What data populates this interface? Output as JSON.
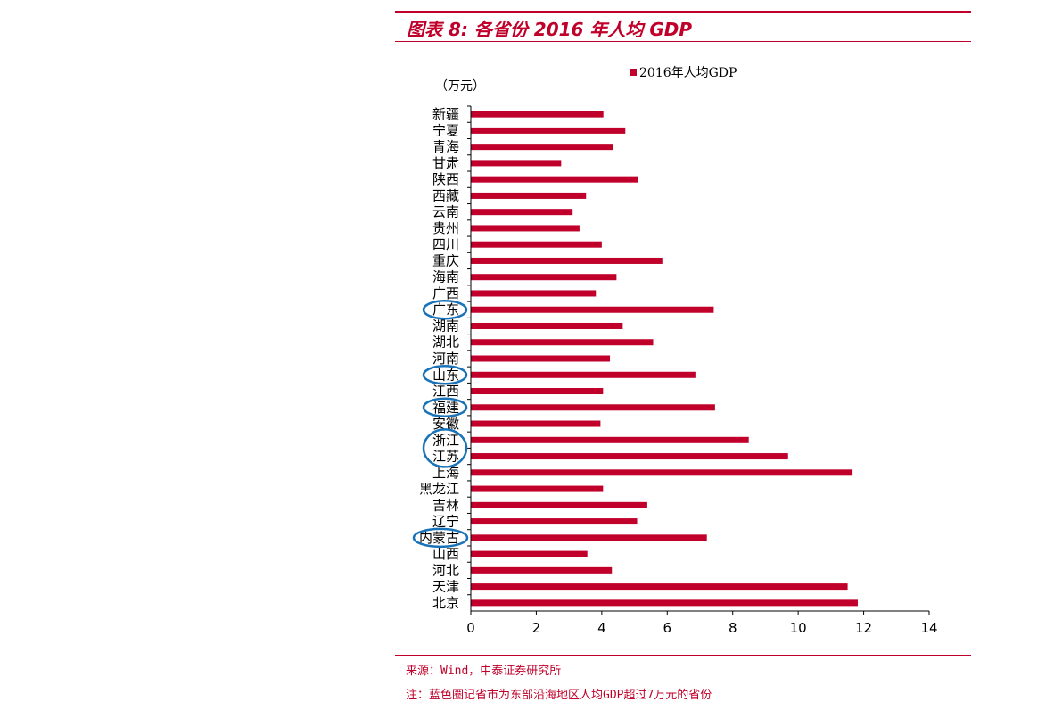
{
  "header": {
    "title": "图表 8: 各省份 2016 年人均 GDP",
    "accent_color": "#c0002a"
  },
  "footer": {
    "source": "来源：Wind，中泰证券研究所",
    "note": "注：蓝色圈记省市为东部沿海地区人均GDP超过7万元的省份"
  },
  "chart_data": {
    "type": "bar",
    "orientation": "horizontal",
    "unit_label": "（万元）",
    "categories": [
      "新疆",
      "宁夏",
      "青海",
      "甘肃",
      "陕西",
      "西藏",
      "云南",
      "贵州",
      "四川",
      "重庆",
      "海南",
      "广西",
      "广东",
      "湖南",
      "湖北",
      "河南",
      "山东",
      "江西",
      "福建",
      "安徽",
      "浙江",
      "江苏",
      "上海",
      "黑龙江",
      "吉林",
      "辽宁",
      "内蒙古",
      "山西",
      "河北",
      "天津",
      "北京"
    ],
    "series": [
      {
        "name": "2016年人均GDP",
        "color": "#c0002a",
        "values": [
          4.05,
          4.72,
          4.35,
          2.76,
          5.1,
          3.52,
          3.11,
          3.32,
          4.0,
          5.85,
          4.45,
          3.82,
          7.42,
          4.64,
          5.57,
          4.25,
          6.86,
          4.04,
          7.46,
          3.96,
          8.49,
          9.69,
          11.66,
          4.04,
          5.39,
          5.08,
          7.21,
          3.56,
          4.31,
          11.51,
          11.82
        ]
      }
    ],
    "xlim": [
      0,
      14
    ],
    "xticks": [
      "0",
      "2",
      "4",
      "6",
      "8",
      "10",
      "12",
      "14"
    ],
    "highlighted_categories": [
      "广东",
      "山东",
      "福建",
      "浙江",
      "江苏",
      "内蒙古"
    ],
    "highlight_color": "#1a73b8",
    "legend_position": "top-center",
    "grid": false
  }
}
